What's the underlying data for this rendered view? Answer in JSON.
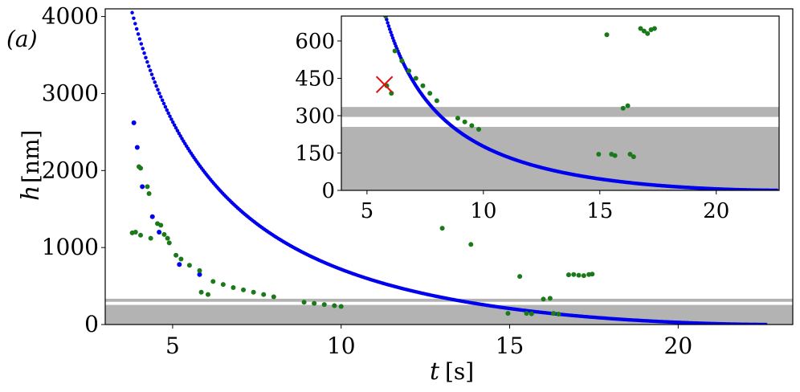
{
  "panel_label": "(a)",
  "chart_data": [
    {
      "type": "scatter",
      "xlabel_var": "t",
      "xlabel_unit": "[s]",
      "ylabel_var": "h",
      "ylabel_unit": "[nm]",
      "xlim": [
        3.0,
        23.4
      ],
      "ylim": [
        0,
        4100
      ],
      "xticks": [
        5,
        10,
        15,
        20
      ],
      "yticks": [
        0,
        1000,
        2000,
        3000,
        4000
      ],
      "shaded_bands": [
        {
          "y0": 0,
          "y1": 255,
          "color": "#b3b3b3"
        },
        {
          "y0": 295,
          "y1": 335,
          "color": "#b3b3b3"
        }
      ],
      "series": [
        {
          "color": "#0000ee",
          "curve": {
            "t0": 3.8,
            "t1": 22.6,
            "h0": 4050,
            "h_end": 0
          },
          "points": [
            [
              3.85,
              2620
            ],
            [
              3.95,
              2300
            ],
            [
              4.1,
              1790
            ],
            [
              4.4,
              1400
            ],
            [
              4.6,
              1200
            ],
            [
              5.2,
              780
            ],
            [
              5.8,
              650
            ]
          ]
        },
        {
          "color": "#1a7a1a",
          "points": [
            [
              4.0,
              2050
            ],
            [
              4.05,
              2030
            ],
            [
              4.25,
              1790
            ],
            [
              4.3,
              1700
            ],
            [
              3.8,
              1190
            ],
            [
              3.9,
              1200
            ],
            [
              4.05,
              1160
            ],
            [
              4.35,
              1120
            ],
            [
              4.55,
              1310
            ],
            [
              4.65,
              1290
            ],
            [
              4.75,
              1170
            ],
            [
              4.85,
              1120
            ],
            [
              4.9,
              1060
            ],
            [
              5.1,
              900
            ],
            [
              5.25,
              850
            ],
            [
              5.5,
              770
            ],
            [
              5.8,
              700
            ],
            [
              5.85,
              420
            ],
            [
              6.05,
              390
            ],
            [
              6.2,
              560
            ],
            [
              6.5,
              520
            ],
            [
              6.8,
              480
            ],
            [
              7.1,
              450
            ],
            [
              7.4,
              420
            ],
            [
              7.7,
              390
            ],
            [
              8.0,
              360
            ],
            [
              8.9,
              290
            ],
            [
              9.2,
              275
            ],
            [
              9.5,
              260
            ],
            [
              9.8,
              245
            ],
            [
              10.0,
              235
            ],
            [
              13.0,
              1250
            ],
            [
              13.85,
              1040
            ],
            [
              15.3,
              625
            ],
            [
              16.0,
              330
            ],
            [
              16.2,
              340
            ],
            [
              16.75,
              645
            ],
            [
              16.9,
              650
            ],
            [
              17.05,
              640
            ],
            [
              17.2,
              635
            ],
            [
              17.35,
              650
            ],
            [
              17.45,
              655
            ],
            [
              14.95,
              145
            ],
            [
              15.5,
              145
            ],
            [
              15.65,
              140
            ],
            [
              16.3,
              145
            ],
            [
              16.45,
              135
            ]
          ]
        }
      ]
    },
    {
      "type": "scatter",
      "inset": true,
      "xlim": [
        3.9,
        22.7
      ],
      "ylim": [
        0,
        700
      ],
      "xticks": [
        5,
        10,
        15,
        20
      ],
      "yticks": [
        0,
        150,
        300,
        450,
        600
      ],
      "shaded_bands": [
        {
          "y0": 0,
          "y1": 255,
          "color": "#b3b3b3"
        },
        {
          "y0": 295,
          "y1": 335,
          "color": "#b3b3b3"
        }
      ],
      "marker": {
        "x": 5.75,
        "y": 425,
        "color": "#dd1111",
        "symbol": "x"
      },
      "series": [
        {
          "color": "#0000ee",
          "curve": {
            "t0": 5.8,
            "t1": 22.6,
            "h0": 700,
            "h_end": 0
          }
        },
        {
          "color": "#1a7a1a",
          "points": [
            [
              5.8,
              700
            ],
            [
              5.85,
              420
            ],
            [
              6.05,
              390
            ],
            [
              6.2,
              560
            ],
            [
              6.5,
              520
            ],
            [
              6.8,
              480
            ],
            [
              7.1,
              450
            ],
            [
              7.4,
              420
            ],
            [
              7.7,
              390
            ],
            [
              8.0,
              360
            ],
            [
              8.9,
              290
            ],
            [
              9.2,
              275
            ],
            [
              9.5,
              260
            ],
            [
              9.8,
              245
            ],
            [
              15.3,
              625
            ],
            [
              16.0,
              330
            ],
            [
              16.2,
              340
            ],
            [
              16.75,
              650
            ],
            [
              16.9,
              640
            ],
            [
              17.05,
              630
            ],
            [
              17.2,
              645
            ],
            [
              17.35,
              650
            ],
            [
              14.95,
              145
            ],
            [
              15.5,
              145
            ],
            [
              15.65,
              140
            ],
            [
              16.3,
              145
            ],
            [
              16.45,
              135
            ]
          ]
        }
      ]
    }
  ]
}
